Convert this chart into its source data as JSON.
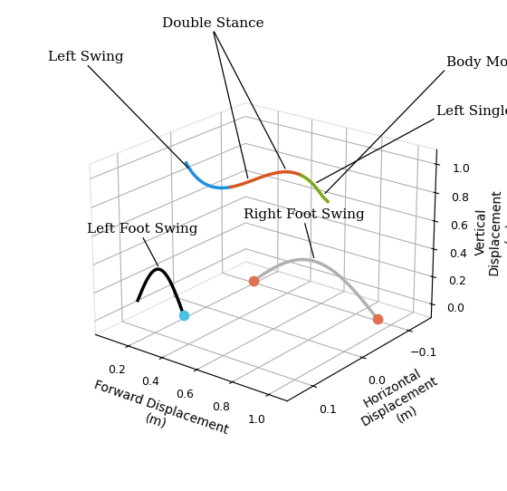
{
  "xlabel": "Forward Displacement\n(m)",
  "ylabel": "Horizontal\nDisplacement\n(m)",
  "zlabel": "Vertical\nDisplacement\n(m)",
  "xlim": [
    0.0,
    1.1
  ],
  "ylim": [
    0.15,
    -0.15
  ],
  "zlim": [
    -0.1,
    1.1
  ],
  "xticks": [
    0.2,
    0.4,
    0.6,
    0.8,
    1.0
  ],
  "yticks": [
    0.1,
    0.0,
    -0.1
  ],
  "zticks": [
    0.0,
    0.2,
    0.4,
    0.6,
    0.8,
    1.0
  ],
  "color_blue": "#1e8fdf",
  "color_orange": "#d95520",
  "color_green": "#78aa18",
  "color_left_foot": "#000000",
  "color_right_foot": "#b0b0b0",
  "color_dot_blue": "#4dbfdf",
  "color_dot_orange": "#e07050",
  "annotation_fontsize": 11,
  "elev": 22,
  "azim": -52
}
